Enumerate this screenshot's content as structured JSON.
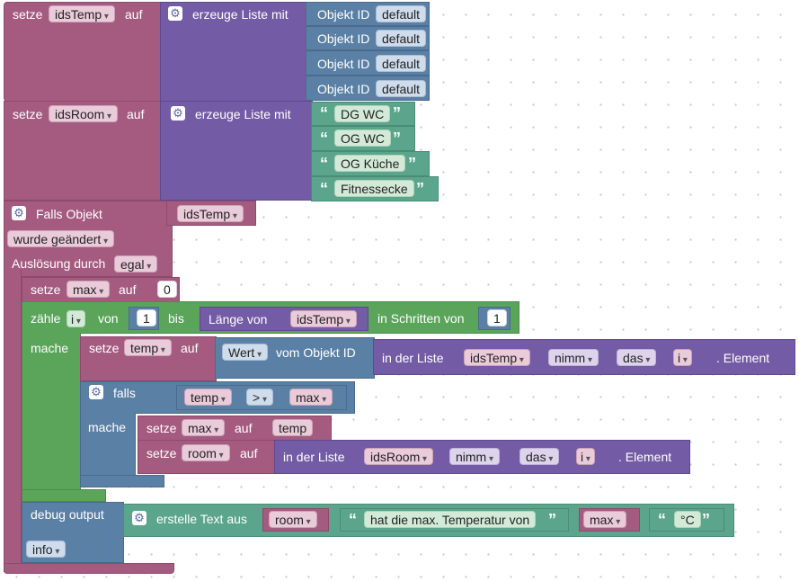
{
  "blocks": {
    "set1": {
      "setze": "setze",
      "var": "idsTemp",
      "auf": "auf",
      "create_list": "erzeuge Liste mit",
      "items": [
        {
          "label": "Objekt ID",
          "value": "default"
        },
        {
          "label": "Objekt ID",
          "value": "default"
        },
        {
          "label": "Objekt ID",
          "value": "default"
        },
        {
          "label": "Objekt ID",
          "value": "default"
        }
      ]
    },
    "set2": {
      "setze": "setze",
      "var": "idsRoom",
      "auf": "auf",
      "create_list": "erzeuge Liste mit",
      "items": [
        "DG WC",
        "OG WC",
        "OG Küche",
        "Fitnessecke"
      ]
    },
    "trigger": {
      "title": "Falls Objekt",
      "var": "idsTemp",
      "changed": "wurde geändert",
      "trigger_by": "Auslösung durch",
      "trigger_value": "egal"
    },
    "set_max": {
      "setze": "setze",
      "var": "max",
      "auf": "auf",
      "value": "0"
    },
    "loop": {
      "count": "zähle",
      "var": "i",
      "from": "von",
      "from_val": "1",
      "to": "bis",
      "length_of": "Länge von",
      "length_var": "idsTemp",
      "step": "in Schritten von",
      "step_val": "1",
      "do": "mache"
    },
    "set_temp": {
      "setze": "setze",
      "var": "temp",
      "auf": "auf",
      "value_op": "Wert",
      "of_object": "vom Objekt ID",
      "in_list": "in der Liste",
      "list_var": "idsTemp",
      "take": "nimm",
      "which": "das",
      "index_var": "i",
      "element": ". Element"
    },
    "if_block": {
      "falls": "falls",
      "left": "temp",
      "op": ">",
      "right": "max",
      "do": "mache"
    },
    "set_max2": {
      "setze": "setze",
      "var": "max",
      "auf": "auf",
      "value": "temp"
    },
    "set_room": {
      "setze": "setze",
      "var": "room",
      "auf": "auf",
      "in_list": "in der Liste",
      "list_var": "idsRoom",
      "take": "nimm",
      "which": "das",
      "index_var": "i",
      "element": ". Element"
    },
    "debug": {
      "label": "debug output",
      "create_text": "erstelle Text aus",
      "var1": "room",
      "text": "hat die max. Temperatur von",
      "var2": "max",
      "unit": "°C",
      "level": "info"
    }
  },
  "icons": {
    "gear": "gear-icon",
    "quote_open": "“",
    "quote_close": "”"
  },
  "colors": {
    "variables": "#a55b80",
    "lists": "#745ba5",
    "objects": "#5b80a5",
    "loops": "#5ba55b",
    "text": "#5ba58c"
  }
}
